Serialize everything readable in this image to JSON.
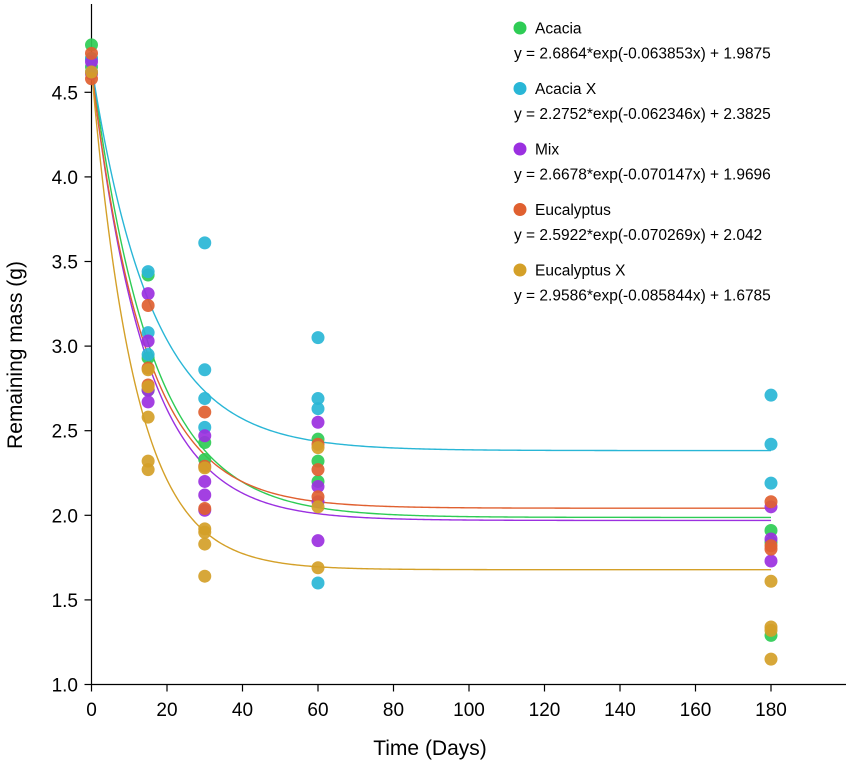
{
  "chart_data": {
    "type": "scatter",
    "xlabel": "Time (Days)",
    "ylabel": "Remaining mass (g)",
    "xlim": [
      0,
      200
    ],
    "ylim": [
      1.0,
      4.95
    ],
    "xticks": [
      0,
      20,
      40,
      60,
      80,
      100,
      120,
      140,
      160,
      180
    ],
    "yticks": [
      1.0,
      1.5,
      2.0,
      2.5,
      3.0,
      3.5,
      4.0,
      4.5
    ],
    "legend_position": "top-right",
    "series": [
      {
        "name": "Acacia",
        "color": "#2ecc55",
        "equation": "y = 2.6864*exp(-0.063853x) + 1.9875",
        "fit": {
          "a": 2.6864,
          "b": 0.063853,
          "c": 1.9875
        },
        "points": [
          [
            0,
            4.78
          ],
          [
            0,
            4.7
          ],
          [
            0,
            4.65
          ],
          [
            15,
            3.42
          ],
          [
            15,
            2.93
          ],
          [
            15,
            2.74
          ],
          [
            30,
            2.43
          ],
          [
            30,
            2.33
          ],
          [
            60,
            2.45
          ],
          [
            60,
            2.32
          ],
          [
            60,
            2.2
          ],
          [
            180,
            1.91
          ],
          [
            180,
            1.84
          ],
          [
            180,
            1.29
          ]
        ]
      },
      {
        "name": "Acacia X",
        "color": "#29b6d6",
        "equation": "y = 2.2752*exp(-0.062346x) + 2.3825",
        "fit": {
          "a": 2.2752,
          "b": 0.062346,
          "c": 2.3825
        },
        "points": [
          [
            0,
            4.7
          ],
          [
            0,
            4.62
          ],
          [
            15,
            3.44
          ],
          [
            15,
            3.08
          ],
          [
            15,
            2.95
          ],
          [
            30,
            3.61
          ],
          [
            30,
            2.86
          ],
          [
            30,
            2.69
          ],
          [
            30,
            2.52
          ],
          [
            60,
            3.05
          ],
          [
            60,
            2.69
          ],
          [
            60,
            2.63
          ],
          [
            60,
            1.6
          ],
          [
            180,
            2.71
          ],
          [
            180,
            2.42
          ],
          [
            180,
            2.19
          ]
        ]
      },
      {
        "name": "Mix",
        "color": "#9b30e0",
        "equation": "y = 2.6678*exp(-0.070147x) + 1.9696",
        "fit": {
          "a": 2.6678,
          "b": 0.070147,
          "c": 1.9696
        },
        "points": [
          [
            0,
            4.68
          ],
          [
            0,
            4.61
          ],
          [
            15,
            3.31
          ],
          [
            15,
            3.03
          ],
          [
            15,
            2.74
          ],
          [
            15,
            2.67
          ],
          [
            30,
            2.47
          ],
          [
            30,
            2.2
          ],
          [
            30,
            2.12
          ],
          [
            30,
            2.03
          ],
          [
            60,
            2.55
          ],
          [
            60,
            2.17
          ],
          [
            60,
            2.08
          ],
          [
            60,
            1.85
          ],
          [
            180,
            2.05
          ],
          [
            180,
            1.86
          ],
          [
            180,
            1.73
          ]
        ]
      },
      {
        "name": "Eucalyptus",
        "color": "#e06030",
        "equation": "y = 2.5922*exp(-0.070269x) + 2.042",
        "fit": {
          "a": 2.5922,
          "b": 0.070269,
          "c": 2.042
        },
        "points": [
          [
            0,
            4.73
          ],
          [
            0,
            4.58
          ],
          [
            15,
            3.24
          ],
          [
            15,
            2.87
          ],
          [
            15,
            2.77
          ],
          [
            30,
            2.61
          ],
          [
            30,
            2.29
          ],
          [
            30,
            2.04
          ],
          [
            60,
            2.42
          ],
          [
            60,
            2.27
          ],
          [
            60,
            2.11
          ],
          [
            180,
            2.08
          ],
          [
            180,
            1.82
          ],
          [
            180,
            1.8
          ]
        ]
      },
      {
        "name": "Eucalyptus X",
        "color": "#d4a028",
        "equation": "y = 2.9586*exp(-0.085844x) + 1.6785",
        "fit": {
          "a": 2.9586,
          "b": 0.085844,
          "c": 1.6785
        },
        "points": [
          [
            0,
            4.62
          ],
          [
            15,
            2.86
          ],
          [
            15,
            2.76
          ],
          [
            15,
            2.58
          ],
          [
            15,
            2.32
          ],
          [
            15,
            2.27
          ],
          [
            30,
            2.28
          ],
          [
            30,
            1.92
          ],
          [
            30,
            1.9
          ],
          [
            30,
            1.83
          ],
          [
            30,
            1.64
          ],
          [
            60,
            2.4
          ],
          [
            60,
            2.05
          ],
          [
            60,
            1.69
          ],
          [
            180,
            1.61
          ],
          [
            180,
            1.34
          ],
          [
            180,
            1.32
          ],
          [
            180,
            1.15
          ]
        ]
      }
    ]
  }
}
